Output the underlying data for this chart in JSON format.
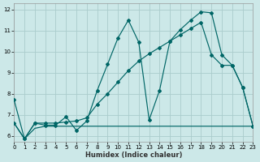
{
  "xlabel": "Humidex (Indice chaleur)",
  "bg_color": "#cce8e8",
  "grid_color": "#aacccc",
  "line_color": "#006666",
  "xlim": [
    0,
    23
  ],
  "ylim": [
    5.7,
    12.3
  ],
  "xticks": [
    0,
    1,
    2,
    3,
    4,
    5,
    6,
    7,
    8,
    9,
    10,
    11,
    12,
    13,
    14,
    15,
    16,
    17,
    18,
    19,
    20,
    21,
    22,
    23
  ],
  "yticks": [
    6,
    7,
    8,
    9,
    10,
    11,
    12
  ],
  "x": [
    0,
    1,
    2,
    3,
    4,
    5,
    6,
    7,
    8,
    9,
    10,
    11,
    12,
    13,
    14,
    15,
    16,
    17,
    18,
    19,
    20,
    21,
    22,
    23
  ],
  "y_jagged": [
    7.7,
    5.85,
    6.6,
    6.5,
    6.5,
    6.9,
    6.25,
    6.7,
    8.15,
    9.4,
    10.65,
    11.5,
    10.45,
    6.75,
    8.15,
    10.5,
    11.05,
    11.5,
    11.9,
    11.85,
    9.85,
    9.35,
    8.3,
    6.45
  ],
  "y_flat": [
    6.6,
    5.85,
    6.35,
    6.45,
    6.45,
    6.45,
    6.45,
    6.45,
    6.45,
    6.45,
    6.45,
    6.45,
    6.45,
    6.45,
    6.45,
    6.45,
    6.45,
    6.45,
    6.45,
    6.45,
    6.45,
    6.45,
    6.45,
    6.45
  ],
  "y_trend": [
    6.6,
    5.85,
    6.6,
    6.6,
    6.6,
    6.65,
    6.7,
    6.85,
    7.5,
    8.0,
    8.55,
    9.1,
    9.55,
    9.9,
    10.2,
    10.5,
    10.8,
    11.1,
    11.4,
    9.85,
    9.35,
    9.35,
    8.3,
    6.45
  ]
}
